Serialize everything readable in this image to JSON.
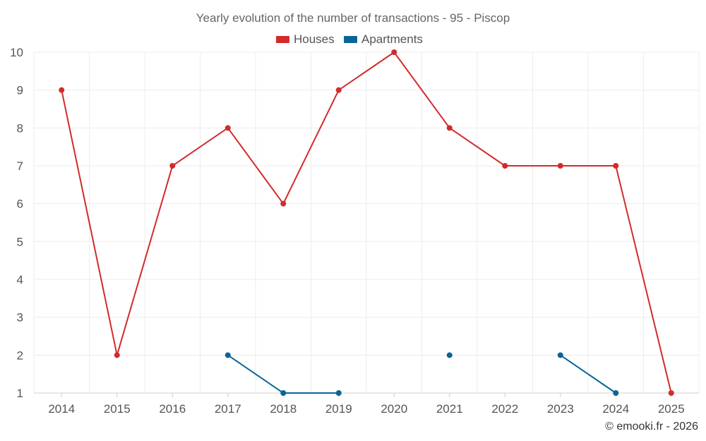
{
  "chart_data": {
    "type": "line",
    "title": "Yearly evolution of the number of transactions - 95 - Piscop",
    "categories": [
      "2014",
      "2015",
      "2016",
      "2017",
      "2018",
      "2019",
      "2020",
      "2021",
      "2022",
      "2023",
      "2024",
      "2025"
    ],
    "series": [
      {
        "name": "Houses",
        "color": "#d42a2a",
        "values": [
          9,
          2,
          7,
          8,
          6,
          9,
          10,
          8,
          7,
          7,
          7,
          1
        ]
      },
      {
        "name": "Apartments",
        "color": "#0a6597",
        "values": [
          null,
          null,
          null,
          2,
          1,
          1,
          null,
          2,
          null,
          2,
          1,
          null
        ]
      }
    ],
    "yticks": [
      "1",
      "2",
      "3",
      "4",
      "5",
      "6",
      "7",
      "8",
      "9",
      "10"
    ],
    "ylim": [
      1,
      10
    ],
    "xlabel": "",
    "ylabel": "",
    "legend_position": "top-center",
    "grid": true
  },
  "credit": "© emooki.fr - 2026"
}
